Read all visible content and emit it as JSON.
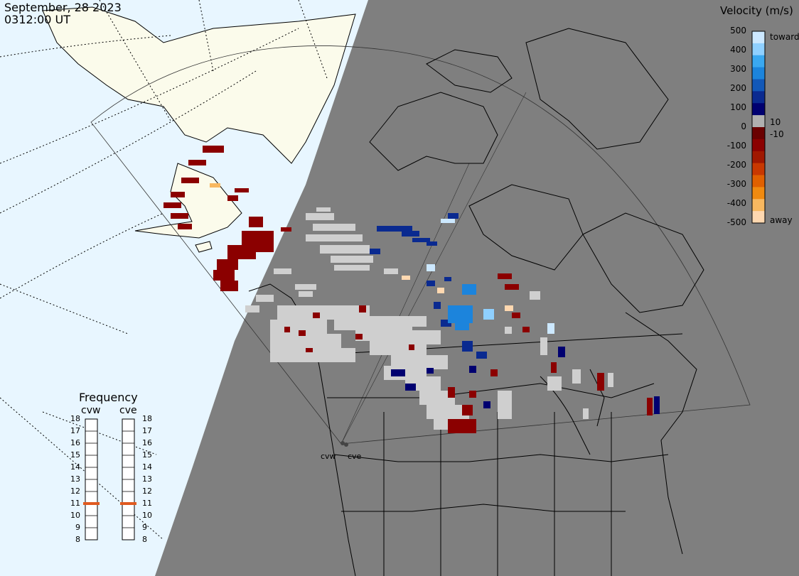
{
  "header": {
    "date": "September, 28 2023",
    "time": "0312:00 UT"
  },
  "velocity_scale": {
    "title": "Velocity (m/s)",
    "ticks": [
      "500",
      "400",
      "300",
      "200",
      "100",
      "0",
      "-100",
      "-200",
      "-300",
      "-400",
      "-500"
    ],
    "inner_ticks": [
      "10",
      "-10"
    ],
    "toward_label": "toward",
    "away_label": "away",
    "colors": [
      "#cce8ff",
      "#8fd0ff",
      "#3aa8f0",
      "#1c84dc",
      "#1258b8",
      "#0a2a90",
      "#000070",
      "#b0b0b0",
      "#6a0000",
      "#8b0000",
      "#a01800",
      "#c83800",
      "#e06000",
      "#f08a10",
      "#f8b860",
      "#ffd8b0"
    ]
  },
  "frequency": {
    "title": "Frequency",
    "stations": [
      {
        "name": "cvw",
        "value": 11
      },
      {
        "name": "cve",
        "value": 11
      }
    ],
    "ticks": [
      "18",
      "17",
      "16",
      "15",
      "14",
      "13",
      "12",
      "11",
      "10",
      "9",
      "8"
    ],
    "marker_color": "#e05a20"
  },
  "map": {
    "night_color": "#7f7f7f",
    "ocean_color": "#e8f6ff",
    "land_color": "#fbfbeb",
    "scatter_color": "#cfcfcf",
    "station_labels": [
      "cvw",
      "cve"
    ]
  }
}
